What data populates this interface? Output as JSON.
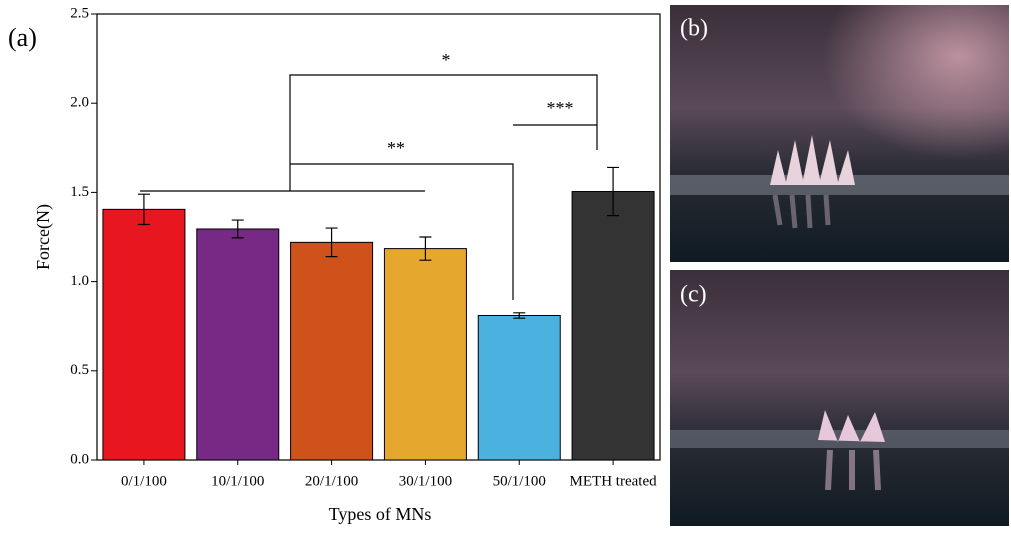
{
  "chart_data": {
    "type": "bar",
    "panel_labels": [
      "(a)",
      "(b)",
      "(c)"
    ],
    "x_label": "Types of MNs",
    "y_label": "Force(N)",
    "categories": [
      "0/1/100",
      "10/1/100",
      "20/1/100",
      "30/1/100",
      "50/1/100",
      "METH treated"
    ],
    "values": [
      1.405,
      1.295,
      1.22,
      1.185,
      0.81,
      1.505
    ],
    "errors": [
      0.085,
      0.05,
      0.08,
      0.065,
      0.015,
      0.135
    ],
    "colors": [
      "#e8171f",
      "#772a85",
      "#d0521b",
      "#e6a72e",
      "#4bb2e0",
      "#333333"
    ],
    "annotations": [
      "*",
      "**",
      "***"
    ],
    "ylim": [
      0,
      2.5
    ],
    "yticks": [
      {
        "value": 0,
        "label": "0.0"
      },
      0.5,
      {
        "value": 1,
        "label": "1.0"
      },
      1.5,
      {
        "value": 2,
        "label": "2.0"
      },
      2.5
    ]
  }
}
